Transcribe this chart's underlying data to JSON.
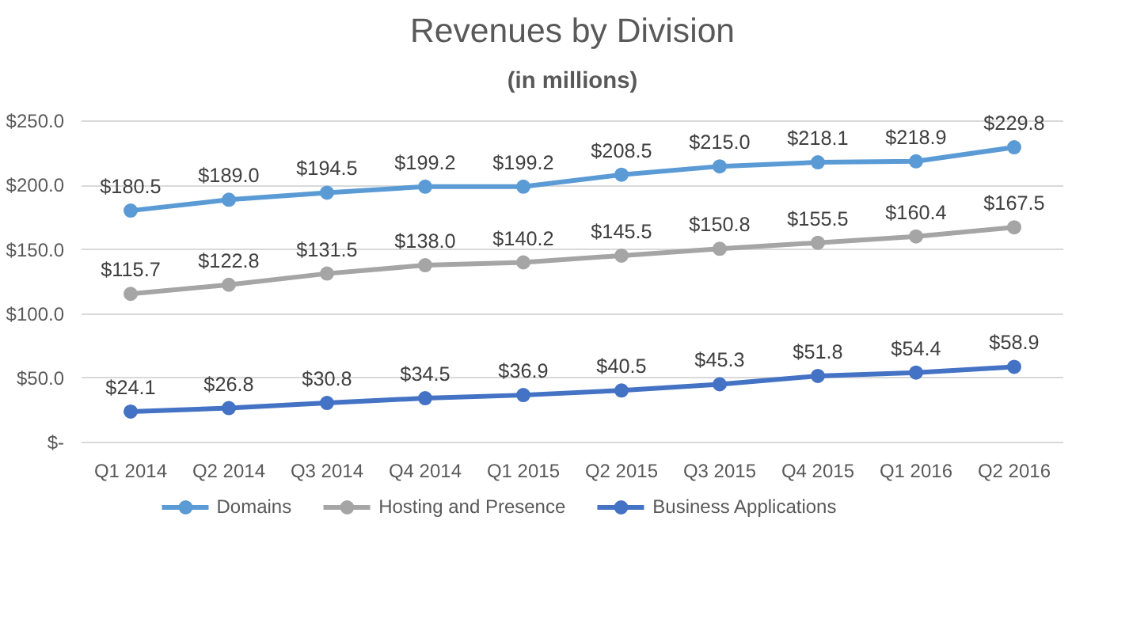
{
  "chart_data": {
    "type": "line",
    "title": "Revenues by Division",
    "subtitle": "(in millions)",
    "categories": [
      "Q1 2014",
      "Q2 2014",
      "Q3 2014",
      "Q4 2014",
      "Q1 2015",
      "Q2 2015",
      "Q3 2015",
      "Q4 2015",
      "Q1 2016",
      "Q2 2016"
    ],
    "series": [
      {
        "name": "Domains",
        "color": "#5b9bd5",
        "values": [
          180.5,
          189.0,
          194.5,
          199.2,
          199.2,
          208.5,
          215.0,
          218.1,
          218.9,
          229.8
        ],
        "value_labels": [
          "$180.5",
          "$189.0",
          "$194.5",
          "$199.2",
          "$199.2",
          "$208.5",
          "$215.0",
          "$218.1",
          "$218.9",
          "$229.8"
        ]
      },
      {
        "name": "Hosting and Presence",
        "color": "#a5a5a5",
        "values": [
          115.7,
          122.8,
          131.5,
          138.0,
          140.2,
          145.5,
          150.8,
          155.5,
          160.4,
          167.5
        ],
        "value_labels": [
          "$115.7",
          "$122.8",
          "$131.5",
          "$138.0",
          "$140.2",
          "$145.5",
          "$150.8",
          "$155.5",
          "$160.4",
          "$167.5"
        ]
      },
      {
        "name": "Business Applications",
        "color": "#4472c4",
        "values": [
          24.1,
          26.8,
          30.8,
          34.5,
          36.9,
          40.5,
          45.3,
          51.8,
          54.4,
          58.9
        ],
        "value_labels": [
          "$24.1",
          "$26.8",
          "$30.8",
          "$34.5",
          "$36.9",
          "$40.5",
          "$45.3",
          "$51.8",
          "$54.4",
          "$58.9"
        ]
      }
    ],
    "ylim": [
      0,
      250
    ],
    "yticks": [
      {
        "value": 0,
        "label": "$-"
      },
      {
        "value": 50,
        "label": "$50.0"
      },
      {
        "value": 100,
        "label": "$100.0"
      },
      {
        "value": 150,
        "label": "$150.0"
      },
      {
        "value": 200,
        "label": "$200.0"
      },
      {
        "value": 250,
        "label": "$250.0"
      }
    ],
    "grid": "y",
    "legend": "bottom",
    "marker": "circle",
    "line_style": "solid"
  }
}
